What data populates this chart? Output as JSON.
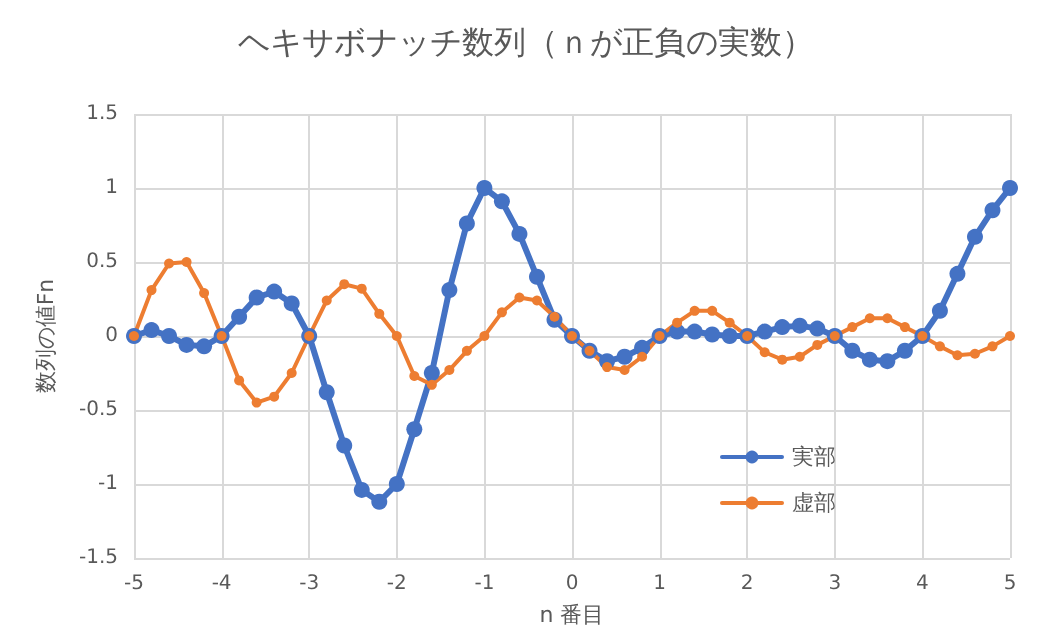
{
  "chart_data": {
    "type": "line",
    "title": "ヘキサボナッチ数列（ｎが正負の実数）",
    "xlabel": "n 番目",
    "ylabel": "数列の値Fn",
    "x": [
      -5,
      -4.8,
      -4.6,
      -4.4,
      -4.2,
      -4,
      -3.8,
      -3.6,
      -3.4,
      -3.2,
      -3,
      -2.8,
      -2.6,
      -2.4,
      -2.2,
      -2,
      -1.8,
      -1.6,
      -1.4,
      -1.2,
      -1,
      -0.8,
      -0.6,
      -0.4,
      -0.2,
      0,
      0.2,
      0.4,
      0.6,
      0.8,
      1,
      1.2,
      1.4,
      1.6,
      1.8,
      2,
      2.2,
      2.4,
      2.6,
      2.8,
      3,
      3.2,
      3.4,
      3.6,
      3.8,
      4,
      4.2,
      4.4,
      4.6,
      4.8,
      5
    ],
    "series": [
      {
        "name": "実部",
        "color": "#4472c4",
        "values": [
          0,
          0.04,
          0,
          -0.06,
          -0.07,
          0,
          0.13,
          0.26,
          0.3,
          0.22,
          0,
          -0.38,
          -0.74,
          -1.04,
          -1.12,
          -1,
          -0.63,
          -0.25,
          0.31,
          0.76,
          1,
          0.91,
          0.69,
          0.4,
          0.11,
          0,
          -0.1,
          -0.17,
          -0.14,
          -0.08,
          0,
          0.03,
          0.03,
          0.01,
          0,
          0,
          0.03,
          0.06,
          0.07,
          0.05,
          0,
          -0.1,
          -0.16,
          -0.17,
          -0.1,
          0,
          0.17,
          0.42,
          0.67,
          0.85,
          1
        ]
      },
      {
        "name": "虚部",
        "color": "#ed7d31",
        "values": [
          0,
          0.31,
          0.49,
          0.5,
          0.29,
          0,
          -0.3,
          -0.45,
          -0.41,
          -0.25,
          0,
          0.24,
          0.35,
          0.32,
          0.15,
          0,
          -0.27,
          -0.33,
          -0.23,
          -0.1,
          0,
          0.16,
          0.26,
          0.24,
          0.13,
          0,
          -0.1,
          -0.21,
          -0.23,
          -0.14,
          0,
          0.09,
          0.17,
          0.17,
          0.09,
          0,
          -0.11,
          -0.16,
          -0.14,
          -0.06,
          0,
          0.06,
          0.12,
          0.12,
          0.06,
          0,
          -0.07,
          -0.13,
          -0.12,
          -0.07,
          0
        ]
      }
    ],
    "xlim": [
      -5,
      5
    ],
    "xticks": [
      -5,
      -4,
      -3,
      -2,
      -1,
      0,
      1,
      2,
      3,
      4,
      5
    ],
    "ylim": [
      -1.5,
      1.5
    ],
    "yticks": [
      -1.5,
      -1,
      -0.5,
      0,
      0.5,
      1,
      1.5
    ],
    "grid": true,
    "legend": "bottom right",
    "marker": "circle",
    "line_style": "solid"
  }
}
